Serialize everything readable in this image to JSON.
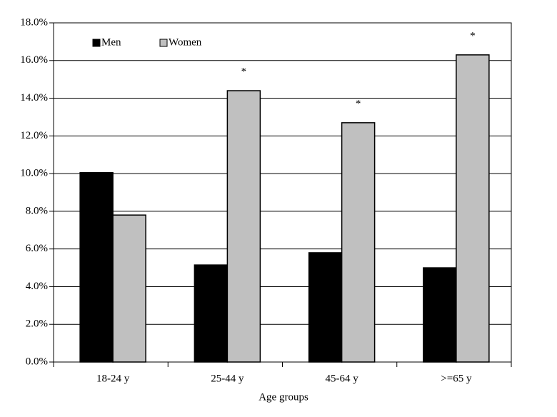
{
  "chart_data": {
    "type": "bar",
    "x_label": "Age groups",
    "categories": [
      "18-24 y",
      "25-44 y",
      "45-64 y",
      ">=65 y"
    ],
    "series": [
      {
        "name": "Men",
        "color": "#000000",
        "values": [
          10.05,
          5.15,
          5.8,
          5.0
        ]
      },
      {
        "name": "Women",
        "color": "#c0c0c0",
        "values": [
          7.8,
          14.4,
          12.7,
          16.3
        ]
      }
    ],
    "annotations": [
      {
        "text": "*",
        "category": "25-44 y",
        "series": "Women"
      },
      {
        "text": "*",
        "category": "45-64 y",
        "series": "Women"
      },
      {
        "text": "*",
        "category": ">=65 y",
        "series": "Women"
      }
    ],
    "ylim": [
      0,
      18
    ],
    "yticks": [
      {
        "value": 0,
        "label": "0.0%"
      },
      {
        "value": 2,
        "label": "2.0%"
      },
      {
        "value": 4,
        "label": "4.0%"
      },
      {
        "value": 6,
        "label": "6.0%"
      },
      {
        "value": 8,
        "label": "8.0%"
      },
      {
        "value": 10,
        "label": "10.0%"
      },
      {
        "value": 12,
        "label": "12.0%"
      },
      {
        "value": 14,
        "label": "14.0%"
      },
      {
        "value": 16,
        "label": "16.0%"
      },
      {
        "value": 18,
        "label": "18.0%"
      }
    ],
    "grid": true,
    "legend": "top-left"
  }
}
